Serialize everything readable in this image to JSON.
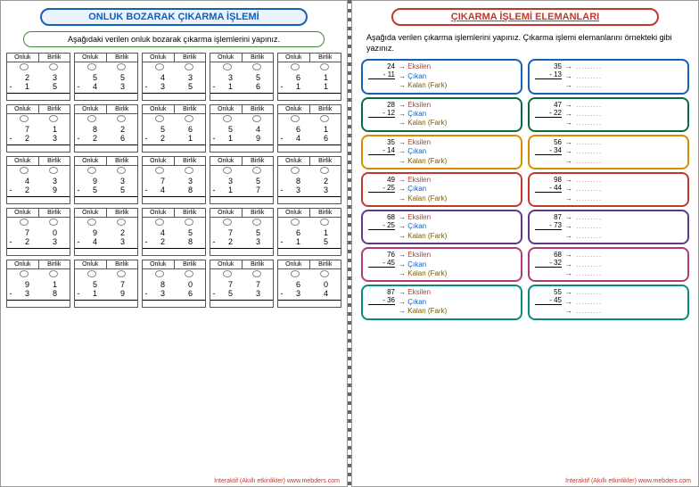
{
  "page1": {
    "title": "ONLUK BOZARAK ÇIKARMA İŞLEMİ",
    "instruction": "Aşağıdaki verilen onluk bozarak çıkarma işlemlerini yapınız.",
    "headers": {
      "on": "Onluk",
      "bir": "Birlik"
    },
    "problems": [
      [
        {
          "a": [
            2,
            3
          ],
          "b": [
            1,
            5
          ]
        },
        {
          "a": [
            5,
            5
          ],
          "b": [
            4,
            3
          ]
        },
        {
          "a": [
            4,
            3
          ],
          "b": [
            3,
            5
          ]
        },
        {
          "a": [
            3,
            5
          ],
          "b": [
            1,
            6
          ]
        },
        {
          "a": [
            6,
            1
          ],
          "b": [
            1,
            1
          ]
        }
      ],
      [
        {
          "a": [
            7,
            1
          ],
          "b": [
            2,
            3
          ]
        },
        {
          "a": [
            8,
            2
          ],
          "b": [
            2,
            6
          ]
        },
        {
          "a": [
            5,
            6
          ],
          "b": [
            2,
            1
          ]
        },
        {
          "a": [
            5,
            4
          ],
          "b": [
            1,
            9
          ]
        },
        {
          "a": [
            6,
            1
          ],
          "b": [
            4,
            6
          ]
        }
      ],
      [
        {
          "a": [
            4,
            3
          ],
          "b": [
            2,
            9
          ]
        },
        {
          "a": [
            9,
            3
          ],
          "b": [
            5,
            5
          ]
        },
        {
          "a": [
            7,
            3
          ],
          "b": [
            4,
            8
          ]
        },
        {
          "a": [
            3,
            5
          ],
          "b": [
            1,
            7
          ]
        },
        {
          "a": [
            8,
            2
          ],
          "b": [
            3,
            3
          ]
        }
      ],
      [
        {
          "a": [
            7,
            0
          ],
          "b": [
            2,
            3
          ]
        },
        {
          "a": [
            9,
            2
          ],
          "b": [
            4,
            3
          ]
        },
        {
          "a": [
            4,
            5
          ],
          "b": [
            2,
            8
          ]
        },
        {
          "a": [
            7,
            5
          ],
          "b": [
            2,
            3
          ]
        },
        {
          "a": [
            6,
            1
          ],
          "b": [
            1,
            5
          ]
        }
      ],
      [
        {
          "a": [
            9,
            1
          ],
          "b": [
            3,
            8
          ]
        },
        {
          "a": [
            5,
            7
          ],
          "b": [
            1,
            9
          ]
        },
        {
          "a": [
            8,
            0
          ],
          "b": [
            3,
            6
          ]
        },
        {
          "a": [
            7,
            7
          ],
          "b": [
            5,
            3
          ]
        },
        {
          "a": [
            6,
            0
          ],
          "b": [
            3,
            4
          ]
        }
      ]
    ]
  },
  "page2": {
    "title": "ÇIKARMA İŞLEMİ ELEMANLARI",
    "instruction": "Aşağıda verilen çıkarma işlemlerini yapınız. Çıkarma işlemi elemanlarını örnekteki gibi yazınız.",
    "labels": {
      "eksilen": "Eksilen",
      "cikan": "Çıkan",
      "kalan": "Kalan (Fark)"
    },
    "dots": ".........",
    "colors": [
      "#1560b8",
      "#0a6b3b",
      "#d98c00",
      "#c0392b",
      "#5b3a8a",
      "#b03a78",
      "#0a8a7a"
    ],
    "rows": [
      {
        "left": {
          "a": 24,
          "b": 11,
          "labeled": true
        },
        "right": {
          "a": 35,
          "b": 13,
          "labeled": false
        }
      },
      {
        "left": {
          "a": 28,
          "b": 12,
          "labeled": true
        },
        "right": {
          "a": 47,
          "b": 22,
          "labeled": false
        }
      },
      {
        "left": {
          "a": 35,
          "b": 14,
          "labeled": true
        },
        "right": {
          "a": 56,
          "b": 34,
          "labeled": false
        }
      },
      {
        "left": {
          "a": 49,
          "b": 25,
          "labeled": true
        },
        "right": {
          "a": 98,
          "b": 44,
          "labeled": false
        }
      },
      {
        "left": {
          "a": 68,
          "b": 25,
          "labeled": true
        },
        "right": {
          "a": 87,
          "b": 73,
          "labeled": false
        }
      },
      {
        "left": {
          "a": 76,
          "b": 45,
          "labeled": true
        },
        "right": {
          "a": 68,
          "b": 32,
          "labeled": false
        }
      },
      {
        "left": {
          "a": 87,
          "b": 36,
          "labeled": true
        },
        "right": {
          "a": 55,
          "b": 45,
          "labeled": false
        }
      }
    ]
  },
  "footer": "İnteraktif (Akıllı etkinlikler)   www.mebders.com"
}
